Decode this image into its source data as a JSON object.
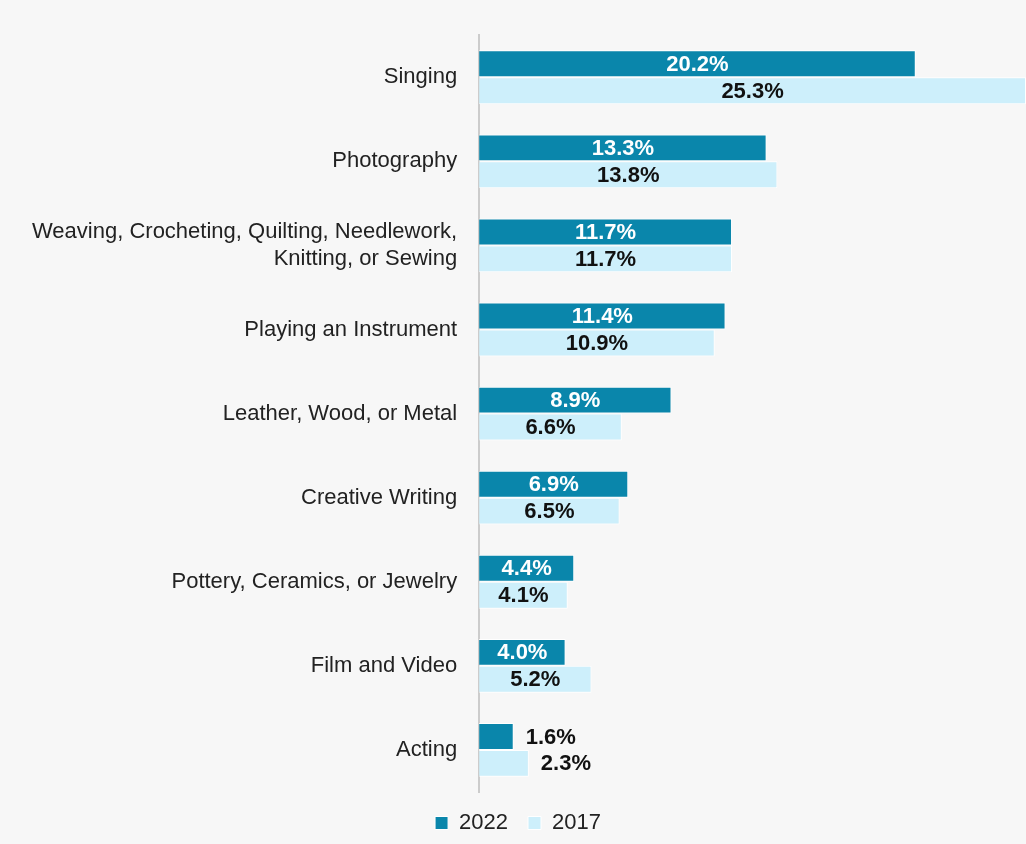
{
  "chart_data": {
    "type": "bar",
    "orientation": "horizontal",
    "categories": [
      "Singing",
      "Photography",
      "Weaving, Crocheting, Quilting, Needlework, Knitting, or Sewing",
      "Playing an Instrument",
      "Leather, Wood, or Metal",
      "Creative Writing",
      "Pottery, Ceramics, or Jewelry",
      "Film and Video",
      "Acting"
    ],
    "series": [
      {
        "name": "2022",
        "color": "#0a86ab",
        "values": [
          20.2,
          13.3,
          11.7,
          11.4,
          8.9,
          6.9,
          4.4,
          4.0,
          1.6
        ],
        "value_labels": [
          "20.2%",
          "13.3%",
          "11.7%",
          "11.4%",
          "8.9%",
          "6.9%",
          "4.4%",
          "4.0%",
          "1.6%"
        ]
      },
      {
        "name": "2017",
        "color": "#cdeffb",
        "values": [
          25.3,
          13.8,
          11.7,
          10.9,
          6.6,
          6.5,
          4.1,
          5.2,
          2.3
        ],
        "value_labels": [
          "25.3%",
          "13.8%",
          "11.7%",
          "10.9%",
          "6.6%",
          "6.5%",
          "4.1%",
          "5.2%",
          "2.3%"
        ]
      }
    ],
    "legend": "bottom"
  }
}
